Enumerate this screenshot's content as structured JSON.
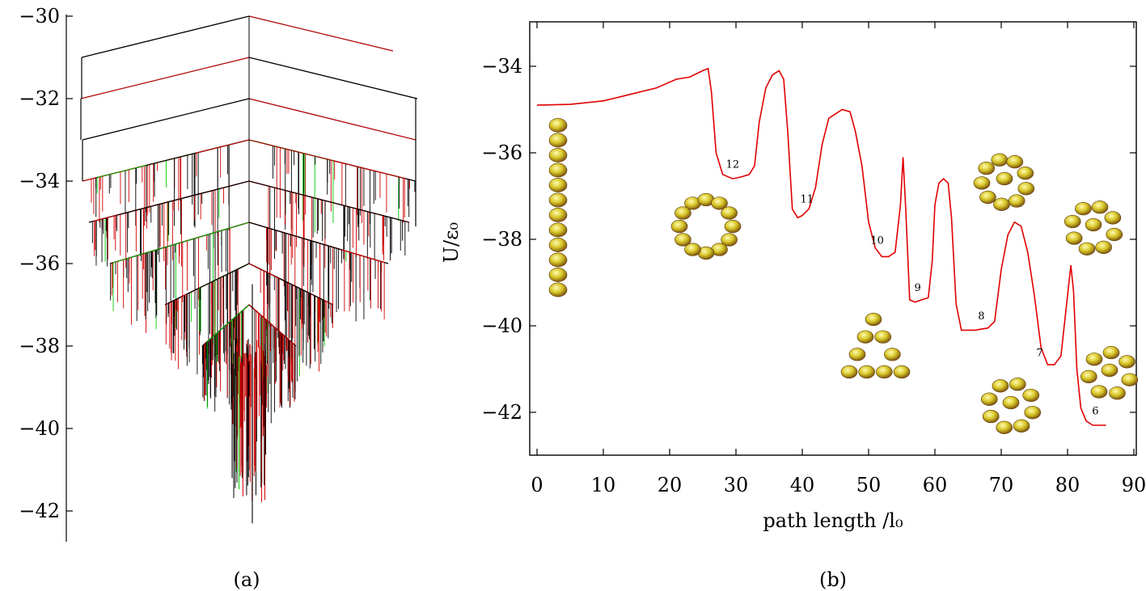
{
  "chart_data": [
    {
      "type": "line",
      "panel_label": "(a)",
      "ylim": [
        -43,
        -30
      ],
      "yticks": [
        -30,
        -32,
        -34,
        -36,
        -38,
        -40,
        -42
      ],
      "ytick_labels": [
        "−30",
        "−32",
        "−34",
        "−36",
        "−38",
        "−40",
        "−42"
      ],
      "levels": [
        -30,
        -31,
        -32,
        -33,
        -34,
        -35,
        -36,
        -37
      ],
      "global_minimum": -42.3,
      "colors": [
        "#000000",
        "#d00000",
        "#00cc00"
      ]
    },
    {
      "type": "line",
      "panel_label": "(b)",
      "xlabel": "path length /l₀",
      "ylabel": "U/ε₀",
      "xlim": [
        -1,
        94
      ],
      "ylim": [
        -43,
        -33
      ],
      "xticks": [
        0,
        10,
        20,
        30,
        40,
        50,
        60,
        70,
        80,
        90
      ],
      "xtick_labels": [
        "0",
        "10",
        "20",
        "30",
        "40",
        "50",
        "60",
        "70",
        "80",
        "90"
      ],
      "yticks": [
        -34,
        -36,
        -38,
        -40,
        -42
      ],
      "ytick_labels": [
        "−34",
        "−36",
        "−38",
        "−40",
        "−42"
      ],
      "series": [
        {
          "color": "#e00000",
          "x": [
            0,
            5,
            10,
            14,
            18,
            21,
            23,
            25,
            25.8,
            26.3,
            27,
            28,
            29.5,
            31,
            32,
            32.8,
            33.5,
            34.5,
            35.5,
            36.5,
            37.2,
            37.8,
            38.5,
            39.3,
            40,
            41,
            42,
            43,
            44,
            45,
            46,
            47.2,
            48,
            49,
            50,
            51,
            52,
            53,
            54,
            54.8,
            55.2,
            55.6,
            56.2,
            57,
            58,
            59,
            59.6,
            60,
            60.6,
            61.3,
            62,
            62.5,
            63.2,
            64,
            66,
            68,
            69,
            70,
            71,
            72,
            73,
            74,
            75,
            76,
            77,
            78,
            79,
            80,
            80.5,
            80.9,
            81.4,
            82,
            82.8,
            83.8,
            84.8,
            85.8
          ],
          "y": [
            -34.9,
            -34.88,
            -34.8,
            -34.65,
            -34.5,
            -34.3,
            -34.25,
            -34.1,
            -34.05,
            -34.6,
            -36.0,
            -36.5,
            -36.6,
            -36.55,
            -36.5,
            -36.3,
            -35.3,
            -34.5,
            -34.2,
            -34.1,
            -34.3,
            -35.5,
            -37.3,
            -37.5,
            -37.45,
            -37.3,
            -36.8,
            -35.8,
            -35.2,
            -35.1,
            -35.0,
            -35.05,
            -35.5,
            -36.3,
            -37.6,
            -38.2,
            -38.4,
            -38.4,
            -38.3,
            -37.2,
            -36.1,
            -37.3,
            -39.4,
            -39.45,
            -39.4,
            -39.35,
            -38.5,
            -37.2,
            -36.7,
            -36.6,
            -36.7,
            -37.5,
            -39.5,
            -40.1,
            -40.1,
            -40.05,
            -39.9,
            -38.7,
            -37.9,
            -37.6,
            -37.7,
            -38.3,
            -39.3,
            -40.5,
            -40.9,
            -40.9,
            -40.7,
            -39.3,
            -38.6,
            -39.2,
            -41.0,
            -41.9,
            -42.2,
            -42.3,
            -42.3,
            -42.3
          ]
        }
      ],
      "annotations": [
        {
          "text": "12",
          "x": 29.5,
          "y": -36.35
        },
        {
          "text": "11",
          "x": 40.7,
          "y": -37.15
        },
        {
          "text": "10",
          "x": 51.3,
          "y": -38.1
        },
        {
          "text": "9",
          "x": 57.4,
          "y": -39.2
        },
        {
          "text": "8",
          "x": 67.0,
          "y": -39.85
        },
        {
          "text": "7",
          "x": 75.8,
          "y": -40.7
        },
        {
          "text": "6",
          "x": 84.2,
          "y": -42.05
        }
      ]
    }
  ]
}
